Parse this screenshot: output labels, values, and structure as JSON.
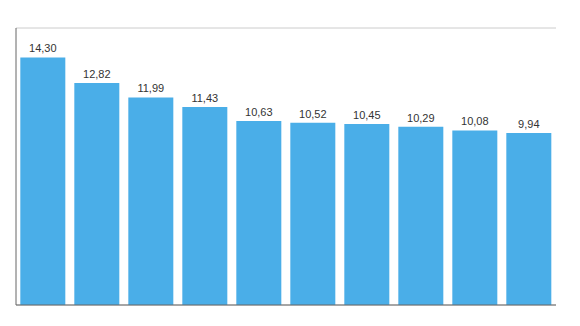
{
  "chart_data": {
    "type": "bar",
    "categories": [
      null,
      null,
      null,
      null,
      null,
      null,
      null,
      null,
      null,
      null
    ],
    "values": [
      14.3,
      12.82,
      11.99,
      11.43,
      10.63,
      10.52,
      10.45,
      10.29,
      10.08,
      9.94
    ],
    "value_labels": [
      "14,30",
      "12,82",
      "11,99",
      "11,43",
      "10,63",
      "10,52",
      "10,45",
      "10,29",
      "10,08",
      "9,94"
    ],
    "color": "#4AAEE8",
    "ylim": [
      0,
      16
    ],
    "yticks": [
      0,
      2,
      4,
      6,
      8,
      10,
      12,
      14,
      16
    ],
    "grid": true,
    "tick_labels": false
  }
}
